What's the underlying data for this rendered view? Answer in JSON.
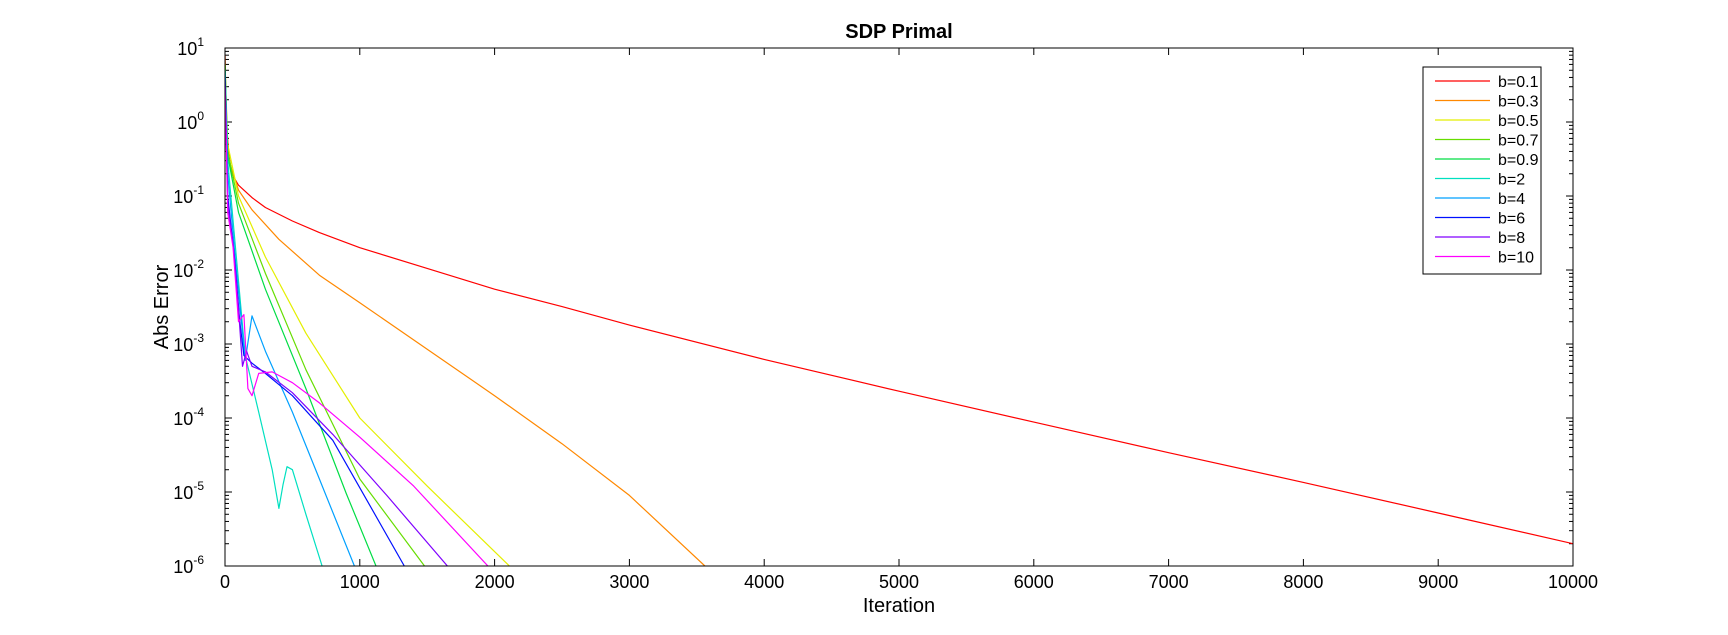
{
  "chart_data": {
    "type": "line",
    "title": "SDP Primal",
    "xlabel": "Iteration",
    "ylabel": "Abs Error",
    "xlim": [
      0,
      10000
    ],
    "ylim": [
      1e-06,
      10
    ],
    "yscale": "log",
    "grid": false,
    "legend_position": "top-right",
    "x_ticks": [
      "0",
      "1000",
      "2000",
      "3000",
      "4000",
      "5000",
      "6000",
      "7000",
      "8000",
      "9000",
      "10000"
    ],
    "y_ticks": [
      {
        "base": "10",
        "exp": "1"
      },
      {
        "base": "10",
        "exp": "0"
      },
      {
        "base": "10",
        "exp": "-1"
      },
      {
        "base": "10",
        "exp": "-2"
      },
      {
        "base": "10",
        "exp": "-3"
      },
      {
        "base": "10",
        "exp": "-4"
      },
      {
        "base": "10",
        "exp": "-5"
      },
      {
        "base": "10",
        "exp": "-6"
      }
    ],
    "series": [
      {
        "name": "b=0.1",
        "color": "#ff0000",
        "x": [
          0,
          10,
          30,
          50,
          100,
          200,
          300,
          500,
          700,
          1000,
          1500,
          2000,
          2500,
          3000,
          4000,
          5000,
          6000,
          7000,
          8000,
          9000,
          10000
        ],
        "y": [
          8,
          1.0,
          0.35,
          0.2,
          0.14,
          0.095,
          0.07,
          0.046,
          0.032,
          0.02,
          0.0105,
          0.0055,
          0.0032,
          0.0018,
          0.00062,
          0.00023,
          8.8e-05,
          3.4e-05,
          1.35e-05,
          5.2e-06,
          2e-06
        ]
      },
      {
        "name": "b=0.3",
        "color": "#ff8800",
        "x": [
          0,
          10,
          30,
          100,
          200,
          400,
          700,
          1000,
          1500,
          2000,
          2500,
          3000,
          3560
        ],
        "y": [
          8,
          0.6,
          0.3,
          0.12,
          0.065,
          0.026,
          0.0085,
          0.0036,
          0.00085,
          0.0002,
          4.5e-05,
          9e-06,
          1e-06
        ]
      },
      {
        "name": "b=0.5",
        "color": "#e4ef00",
        "x": [
          0,
          20,
          100,
          300,
          600,
          1000,
          1500,
          2110
        ],
        "y": [
          6,
          0.5,
          0.1,
          0.015,
          0.0014,
          0.0001,
          1.2e-05,
          1e-06
        ]
      },
      {
        "name": "b=0.7",
        "color": "#66dd00",
        "x": [
          0,
          20,
          100,
          300,
          600,
          1000,
          1480
        ],
        "y": [
          6,
          0.4,
          0.08,
          0.009,
          0.00045,
          1.5e-05,
          1e-06
        ]
      },
      {
        "name": "b=0.9",
        "color": "#00dd44",
        "x": [
          0,
          20,
          100,
          300,
          600,
          900,
          1120
        ],
        "y": [
          6,
          0.35,
          0.06,
          0.0055,
          0.00025,
          9.5e-06,
          1e-06
        ]
      },
      {
        "name": "b=2",
        "color": "#00e0c0",
        "x": [
          0,
          20,
          80,
          150,
          250,
          350,
          400,
          430,
          460,
          500,
          600,
          720
        ],
        "y": [
          5,
          0.3,
          0.018,
          0.0007,
          0.00012,
          2e-05,
          6e-06,
          1.25e-05,
          2.2e-05,
          2e-05,
          5e-06,
          1e-06
        ]
      },
      {
        "name": "b=4",
        "color": "#00a0ff",
        "x": [
          0,
          20,
          80,
          150,
          200,
          300,
          500,
          700,
          960
        ],
        "y": [
          5,
          0.2,
          0.012,
          0.0006,
          0.0024,
          0.0008,
          0.00012,
          1.5e-05,
          1e-06
        ]
      },
      {
        "name": "b=6",
        "color": "#0010ff",
        "x": [
          0,
          20,
          70,
          110,
          140,
          200,
          300,
          500,
          800,
          1330
        ],
        "y": [
          4,
          0.1,
          0.015,
          0.002,
          0.0007,
          0.00055,
          0.0004,
          0.0002,
          5e-05,
          1e-06
        ]
      },
      {
        "name": "b=8",
        "color": "#8000ff",
        "x": [
          0,
          20,
          60,
          100,
          130,
          160,
          200,
          300,
          500,
          800,
          1200,
          1650
        ],
        "y": [
          3.5,
          0.08,
          0.022,
          0.003,
          0.0005,
          0.0008,
          0.0005,
          0.00042,
          0.00022,
          6e-05,
          9e-06,
          1e-06
        ]
      },
      {
        "name": "b=10",
        "color": "#ff00ff",
        "x": [
          0,
          20,
          60,
          100,
          140,
          170,
          200,
          250,
          350,
          500,
          700,
          1000,
          1400,
          1950
        ],
        "y": [
          3,
          0.06,
          0.02,
          0.002,
          0.0025,
          0.00025,
          0.0002,
          0.0004,
          0.00042,
          0.0003,
          0.00016,
          5.5e-05,
          1.2e-05,
          1e-06
        ]
      }
    ]
  }
}
